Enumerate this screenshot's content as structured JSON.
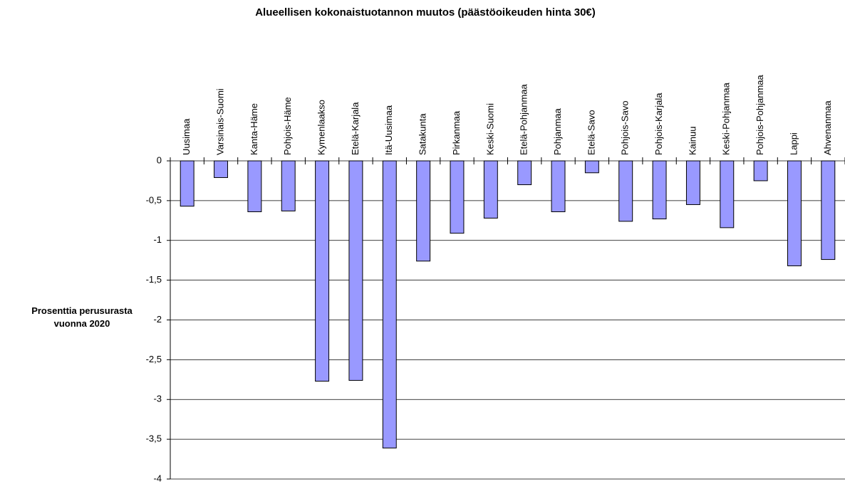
{
  "chart_data": {
    "type": "bar",
    "title": "Alueellisen kokonaistuotannon muutos (päästöoikeuden hinta 30€)",
    "y_label": "Prosenttia perusurasta vuonna 2020",
    "categories": [
      "Uusimaa",
      "Varsinais-Suomi",
      "Kanta-Häme",
      "Pohjois-Häme",
      "Kymenlaakso",
      "Etelä-Karjala",
      "Itä-Uusimaa",
      "Satakunta",
      "Pirkanmaa",
      "Keski-Suomi",
      "Etelä-Pohjanmaa",
      "Pohjanmaa",
      "Etelä-Savo",
      "Pohjois-Savo",
      "Pohjois-Karjala",
      "Kainuu",
      "Keski-Pohjanmaa",
      "Pohjois-Pohjanmaa",
      "Lappi",
      "Ahvenanmaa"
    ],
    "values": [
      -0.57,
      -0.21,
      -0.64,
      -0.63,
      -2.77,
      -2.76,
      -3.61,
      -1.26,
      -0.91,
      -0.72,
      -0.3,
      -0.64,
      -0.15,
      -0.76,
      -0.73,
      -0.55,
      -0.84,
      -0.25,
      -1.32,
      -1.24
    ],
    "color": "#9999ff",
    "ylim": [
      -4,
      0
    ],
    "yticks": [
      0,
      {
        "value": -0.5,
        "label": "-0,5"
      },
      -1,
      {
        "value": -1.5,
        "label": "-1,5"
      },
      -2,
      {
        "value": -2.5,
        "label": "-2,5"
      },
      -3,
      {
        "value": -3.5,
        "label": "-3,5"
      },
      -4
    ],
    "grid": true
  }
}
